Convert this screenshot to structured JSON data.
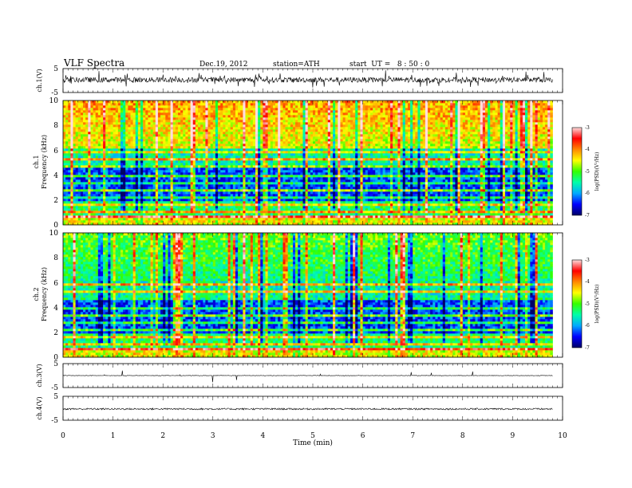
{
  "header": {
    "title": "VLF Spectra",
    "date": "Dec.19, 2012",
    "station": "station=ATH",
    "start_ut": "start  UT =   8 : 50 : 0"
  },
  "x_axis": {
    "label": "Time (min)",
    "range": [
      0,
      10
    ],
    "ticks": [
      "0",
      "1",
      "2",
      "3",
      "4",
      "5",
      "6",
      "7",
      "8",
      "9",
      "10"
    ],
    "data_end_min": 9.8
  },
  "panels": {
    "ch1_wave": {
      "ylabel": "ch.1(V)",
      "ticks": [
        "5",
        "-5"
      ],
      "range": [
        -5,
        5
      ]
    },
    "ch1_spec": {
      "ylabel_top": "ch.1",
      "ylabel": "Frequency (kHz)",
      "ticks": [
        "10",
        "8",
        "6",
        "4",
        "2",
        "0"
      ],
      "range": [
        0,
        10
      ]
    },
    "ch2_spec": {
      "ylabel_top": "ch.2",
      "ylabel": "Frequency (kHz)",
      "ticks": [
        "10",
        "8",
        "6",
        "4",
        "2",
        "0"
      ],
      "range": [
        0,
        10
      ]
    },
    "ch3_wave": {
      "ylabel": "ch.3(V)",
      "ticks": [
        "5",
        "-5"
      ],
      "range": [
        -5,
        5
      ]
    },
    "ch4_wave": {
      "ylabel": "ch.4(V)",
      "ticks": [
        "5",
        "-5"
      ],
      "range": [
        -5,
        5
      ]
    }
  },
  "colorbar": {
    "label": "log(PSD)(V²/Hz)",
    "ticks": [
      "-3",
      "-4",
      "-5",
      "-6",
      "-7"
    ],
    "range": [
      -7,
      -3
    ],
    "colors": [
      "#000066",
      "#0000ff",
      "#00aaff",
      "#00ffaa",
      "#33ff00",
      "#ffff00",
      "#ff8800",
      "#ff0000",
      "#ffdddd"
    ]
  },
  "chart_data": [
    {
      "type": "line",
      "name": "ch.1(V)",
      "x_range": [
        0,
        9.8
      ],
      "ylim": [
        -5,
        5
      ],
      "baseline": 0.3
    },
    {
      "type": "heatmap",
      "name": "ch.1",
      "x_range": [
        0,
        9.8
      ],
      "ylim": [
        0,
        10
      ],
      "z_range": [
        -7,
        -3
      ]
    },
    {
      "type": "heatmap",
      "name": "ch.2",
      "x_range": [
        0,
        9.8
      ],
      "ylim": [
        0,
        10
      ],
      "z_range": [
        -7,
        -3
      ]
    },
    {
      "type": "line",
      "name": "ch.3(V)",
      "x_range": [
        0,
        9.8
      ],
      "ylim": [
        -5,
        5
      ],
      "baseline": 0.0
    },
    {
      "type": "line",
      "name": "ch.4(V)",
      "x_range": [
        0,
        9.8
      ],
      "ylim": [
        -5,
        5
      ],
      "baseline": -0.3
    }
  ]
}
